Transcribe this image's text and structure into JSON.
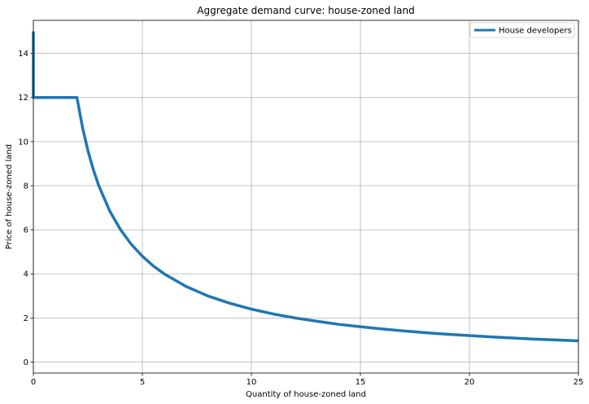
{
  "chart_data": {
    "type": "line",
    "title": "Aggregate demand curve: house-zoned land",
    "xlabel": "Quantity of house-zoned land",
    "ylabel": "Price of house-zoned land",
    "xlim": [
      0,
      25
    ],
    "ylim": [
      -0.5,
      15.5
    ],
    "xticks": [
      0,
      5,
      10,
      15,
      20,
      25
    ],
    "yticks": [
      0,
      2,
      4,
      6,
      8,
      10,
      12,
      14
    ],
    "grid": true,
    "legend_position": "top-right",
    "series": [
      {
        "name": "House developers",
        "color": "#1f77b4",
        "x": [
          0,
          0,
          0.02,
          2.0,
          2.25,
          2.5,
          2.75,
          3.0,
          3.5,
          4.0,
          4.5,
          5.0,
          5.5,
          6.0,
          7.0,
          8.0,
          9.0,
          10.0,
          11.0,
          12.0,
          13.0,
          14.0,
          15.0,
          16.0,
          17.0,
          18.0,
          19.0,
          20.0,
          21.0,
          22.0,
          23.0,
          24.0,
          25.0
        ],
        "y": [
          15.0,
          12.0,
          12.0,
          12.0,
          10.67,
          9.6,
          8.73,
          8.0,
          6.86,
          6.0,
          5.33,
          4.8,
          4.36,
          4.0,
          3.43,
          3.0,
          2.67,
          2.4,
          2.18,
          2.0,
          1.85,
          1.71,
          1.6,
          1.5,
          1.41,
          1.33,
          1.26,
          1.2,
          1.14,
          1.09,
          1.04,
          1.0,
          0.96
        ]
      }
    ]
  }
}
